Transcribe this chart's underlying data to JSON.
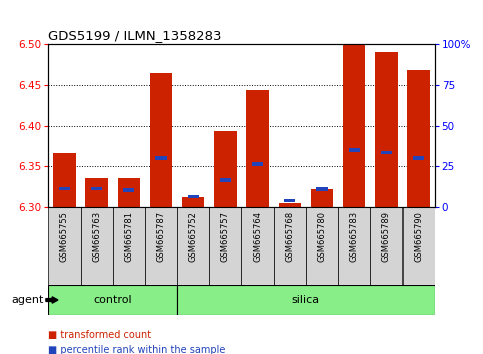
{
  "title": "GDS5199 / ILMN_1358283",
  "samples": [
    "GSM665755",
    "GSM665763",
    "GSM665781",
    "GSM665787",
    "GSM665752",
    "GSM665757",
    "GSM665764",
    "GSM665768",
    "GSM665780",
    "GSM665783",
    "GSM665789",
    "GSM665790"
  ],
  "groups": [
    "control",
    "control",
    "control",
    "control",
    "silica",
    "silica",
    "silica",
    "silica",
    "silica",
    "silica",
    "silica",
    "silica"
  ],
  "red_values": [
    6.367,
    6.336,
    6.336,
    6.465,
    6.312,
    6.394,
    6.444,
    6.305,
    6.322,
    6.5,
    6.49,
    6.468
  ],
  "blue_values": [
    6.323,
    6.323,
    6.321,
    6.36,
    6.313,
    6.333,
    6.353,
    6.308,
    6.322,
    6.37,
    6.367,
    6.36
  ],
  "ymin": 6.3,
  "ymax": 6.5,
  "yticks": [
    6.3,
    6.35,
    6.4,
    6.45,
    6.5
  ],
  "right_yticks": [
    0,
    25,
    50,
    75,
    100
  ],
  "right_ytick_labels": [
    "0",
    "25",
    "50",
    "75",
    "100%"
  ],
  "bar_color": "#cc2200",
  "blue_color": "#2244bb",
  "label_box_color": "#d4d4d4",
  "control_color": "#88ee88",
  "silica_color": "#88ee88",
  "agent_label": "agent",
  "legend_red": "transformed count",
  "legend_blue": "percentile rank within the sample",
  "bar_width": 0.7
}
